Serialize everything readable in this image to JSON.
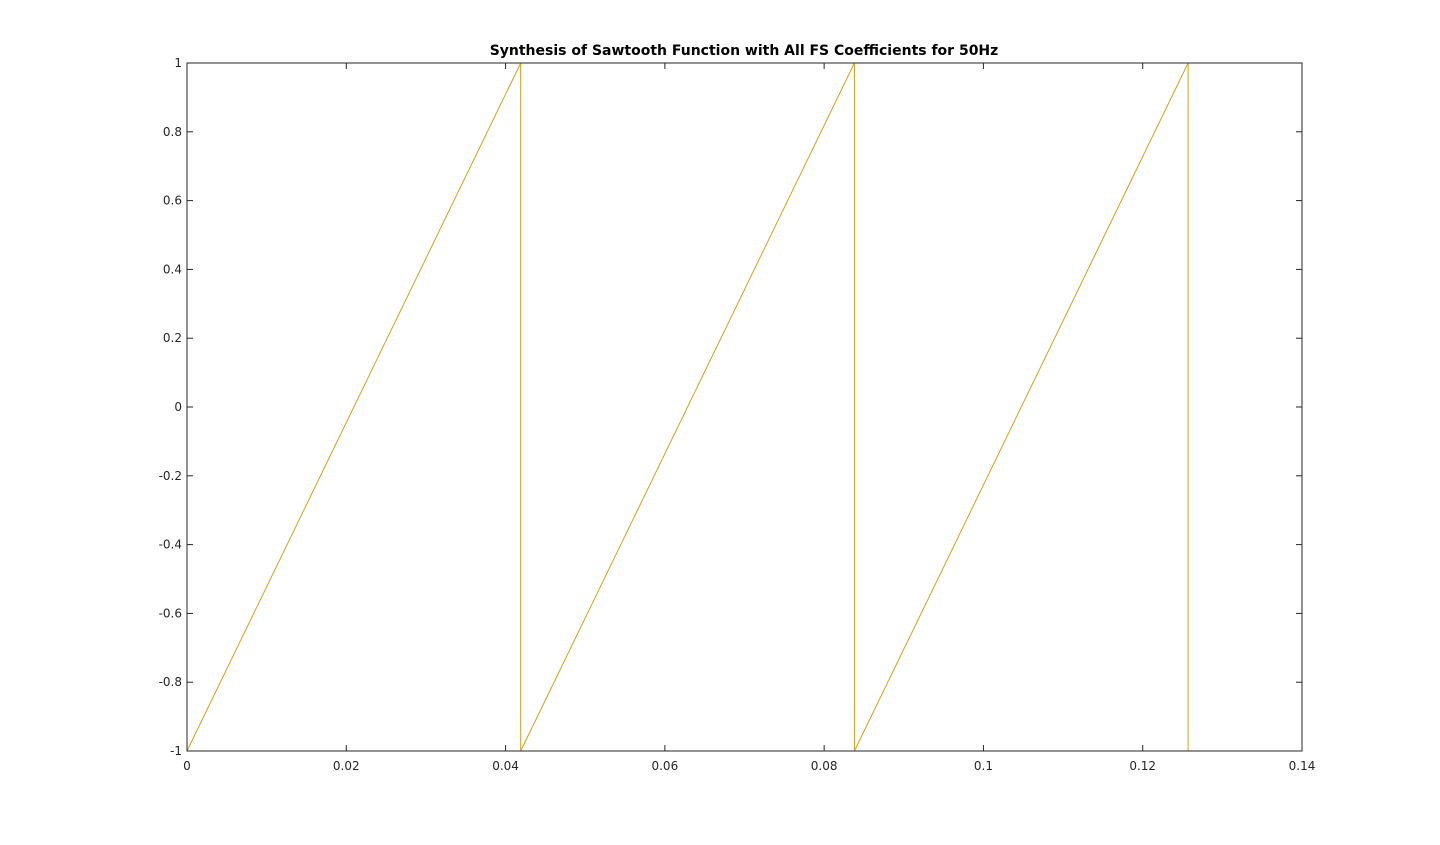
{
  "chart_data": {
    "type": "line",
    "title": "Synthesis of Sawtooth Function with All FS Coefficients for 50Hz",
    "xlabel": "",
    "ylabel": "",
    "xlim": [
      0,
      0.14
    ],
    "ylim": [
      -1,
      1
    ],
    "xticks": [
      0,
      0.02,
      0.04,
      0.06,
      0.08,
      0.1,
      0.12,
      0.14
    ],
    "xtick_labels": [
      "0",
      "0.02",
      "0.04",
      "0.06",
      "0.08",
      "0.1",
      "0.12",
      "0.14"
    ],
    "yticks": [
      -1,
      -0.8,
      -0.6,
      -0.4,
      -0.2,
      0,
      0.2,
      0.4,
      0.6,
      0.8,
      1
    ],
    "ytick_labels": [
      "-1",
      "-0.8",
      "-0.6",
      "-0.4",
      "-0.2",
      "0",
      "0.2",
      "0.4",
      "0.6",
      "0.8",
      "1"
    ],
    "grid": false,
    "series": [
      {
        "color": "#d4a017",
        "x": [
          0,
          0.0419,
          0.0419,
          0.0838,
          0.0838,
          0.1257,
          0.1257
        ],
        "y": [
          -1,
          1,
          -1,
          1,
          -1,
          1,
          -1
        ]
      }
    ]
  }
}
